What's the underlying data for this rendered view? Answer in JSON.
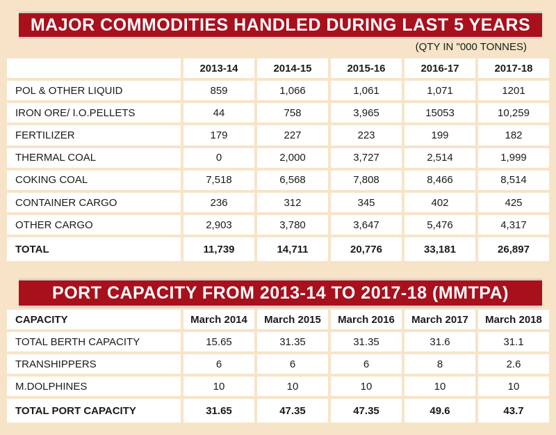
{
  "commodities": {
    "title": "MAJOR COMMODITIES HANDLED DURING LAST 5 YEARS",
    "unit_note": "(QTY IN \"000 TONNES)",
    "header_label": "",
    "years": [
      "2013-14",
      "2014-15",
      "2015-16",
      "2016-17",
      "2017-18"
    ],
    "rows": [
      {
        "label": "POL & OTHER LIQUID",
        "values": [
          "859",
          "1,066",
          "1,061",
          "1,071",
          "1201"
        ]
      },
      {
        "label": "IRON ORE/ I.O.PELLETS",
        "values": [
          "44",
          "758",
          "3,965",
          "15053",
          "10,259"
        ]
      },
      {
        "label": "FERTILIZER",
        "values": [
          "179",
          "227",
          "223",
          "199",
          "182"
        ]
      },
      {
        "label": "THERMAL COAL",
        "values": [
          "0",
          "2,000",
          "3,727",
          "2,514",
          "1,999"
        ]
      },
      {
        "label": "COKING COAL",
        "values": [
          "7,518",
          "6,568",
          "7,808",
          "8,466",
          "8,514"
        ]
      },
      {
        "label": "CONTAINER CARGO",
        "values": [
          "236",
          "312",
          "345",
          "402",
          "425"
        ]
      },
      {
        "label": "OTHER CARGO",
        "values": [
          "2,903",
          "3,780",
          "3,647",
          "5,476",
          "4,317"
        ]
      }
    ],
    "total": {
      "label": "TOTAL",
      "values": [
        "11,739",
        "14,711",
        "20,776",
        "33,181",
        "26,897"
      ]
    }
  },
  "capacity": {
    "title": "PORT CAPACITY FROM 2013-14 TO 2017-18 (MMTPA)",
    "header_label": "CAPACITY",
    "periods": [
      "March 2014",
      "March 2015",
      "March 2016",
      "March 2017",
      "March 2018"
    ],
    "rows": [
      {
        "label": "TOTAL BERTH CAPACITY",
        "values": [
          "15.65",
          "31.35",
          "31.35",
          "31.6",
          "31.1"
        ]
      },
      {
        "label": "TRANSHIPPERS",
        "values": [
          "6",
          "6",
          "6",
          "8",
          "2.6"
        ]
      },
      {
        "label": "M.DOLPHINES",
        "values": [
          "10",
          "10",
          "10",
          "10",
          "10"
        ]
      }
    ],
    "total": {
      "label": "TOTAL PORT CAPACITY",
      "values": [
        "31.65",
        "47.35",
        "47.35",
        "49.6",
        "43.7"
      ]
    }
  }
}
